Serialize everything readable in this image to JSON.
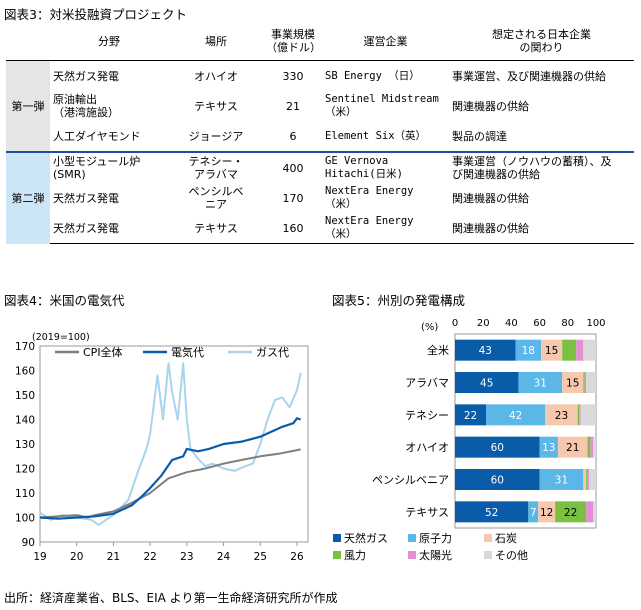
{
  "table": {
    "title": "図表3：対米投融資プロジェクト",
    "headers": [
      "",
      "分野",
      "場所",
      "事業規模\n（億ドル）",
      "運営企業",
      "想定される日本企業\nの関わり"
    ],
    "groups": [
      {
        "label": "第一弾",
        "rows": [
          {
            "field": "天然ガス発電",
            "place": "オハイオ",
            "size": "330",
            "company": "SB Energy （日）",
            "role": "事業運営、及び関連機器の供給"
          },
          {
            "field": "原油輸出\n（港湾施設）",
            "place": "テキサス",
            "size": "21",
            "company": "Sentinel Midstream\n（米）",
            "role": "関連機器の供給"
          },
          {
            "field": "人工ダイヤモンド",
            "place": "ジョージア",
            "size": "6",
            "company": "Element Six（英）",
            "role": "製品の調達"
          }
        ]
      },
      {
        "label": "第二弾",
        "rows": [
          {
            "field": "小型モジュール炉\n(SMR)",
            "place": "テネシー・\nアラバマ",
            "size": "400",
            "company": "GE Vernova\nHitachi(日米)",
            "role": "事業運営（ノウハウの蓄積）、及\nび関連機器の供給"
          },
          {
            "field": "天然ガス発電",
            "place": "ペンシルベ\nニア",
            "size": "170",
            "company": "NextEra Energy\n（米）",
            "role": "関連機器の供給"
          },
          {
            "field": "天然ガス発電",
            "place": "テキサス",
            "size": "160",
            "company": "NextEra Energy\n（米）",
            "role": "関連機器の供給"
          }
        ]
      }
    ]
  },
  "footer": "出所：経済産業省、BLS、EIA より第一生命経済研究所が作成",
  "chart_data": [
    {
      "type": "line",
      "title": "図表4：米国の電気代",
      "unit_label": "(2019=100)",
      "ylim": [
        90,
        170
      ],
      "yticks": [
        90,
        100,
        110,
        120,
        130,
        140,
        150,
        160,
        170
      ],
      "xlim": [
        2019,
        2026.3
      ],
      "xticks": [
        2019,
        2020,
        2021,
        2022,
        2023,
        2024,
        2025,
        2026
      ],
      "xtick_labels": [
        "19",
        "20",
        "21",
        "22",
        "23",
        "24",
        "25",
        "26"
      ],
      "series": [
        {
          "name": "CPI全体",
          "color": "#7f7f7f",
          "x": [
            2019,
            2019.5,
            2020,
            2020.3,
            2020.5,
            2021,
            2021.5,
            2022,
            2022.5,
            2023,
            2023.5,
            2024,
            2024.5,
            2025,
            2025.5,
            2026,
            2026.1
          ],
          "y": [
            100,
            100.5,
            101,
            100,
            101,
            102.5,
            106,
            110,
            116,
            118.5,
            120,
            122,
            123.5,
            125,
            126,
            127.5,
            127.8
          ]
        },
        {
          "name": "電気代",
          "color": "#0a5ca8",
          "x": [
            2019,
            2019.5,
            2020,
            2020.5,
            2021,
            2021.5,
            2021.8,
            2022,
            2022.3,
            2022.6,
            2022.9,
            2023,
            2023.3,
            2023.6,
            2024,
            2024.5,
            2025,
            2025.3,
            2025.6,
            2025.9,
            2026,
            2026.1
          ],
          "y": [
            100,
            99.5,
            100,
            100.5,
            101.5,
            105,
            109,
            112,
            117,
            123.5,
            125,
            128,
            127,
            128,
            130,
            131,
            133,
            135,
            137,
            138.5,
            140.5,
            140
          ]
        },
        {
          "name": "ガス代",
          "color": "#a9d4ec",
          "x": [
            2019,
            2019.3,
            2019.6,
            2020,
            2020.4,
            2020.6,
            2021,
            2021.4,
            2021.7,
            2021.9,
            2022,
            2022.2,
            2022.35,
            2022.5,
            2022.6,
            2022.75,
            2022.9,
            2023,
            2023.1,
            2023.3,
            2023.5,
            2023.7,
            2024,
            2024.3,
            2024.6,
            2024.8,
            2025,
            2025.2,
            2025.4,
            2025.6,
            2025.8,
            2026,
            2026.1
          ],
          "y": [
            102,
            99,
            101,
            100,
            99,
            97,
            101,
            107,
            120,
            128,
            134,
            158,
            140,
            163,
            151,
            140,
            163,
            140,
            128,
            124,
            121,
            122,
            120,
            119,
            121,
            122,
            130,
            140,
            148,
            149,
            145,
            152,
            159
          ]
        }
      ]
    },
    {
      "type": "bar",
      "stacked": true,
      "orientation": "horizontal",
      "title": "図表5：州別の発電構成",
      "unit_label": "(%)",
      "xlim": [
        0,
        100
      ],
      "xticks": [
        0,
        20,
        40,
        60,
        80,
        100
      ],
      "categories": [
        "全米",
        "アラバマ",
        "テネシー",
        "オハイオ",
        "ペンシルベニア",
        "テキサス"
      ],
      "series": [
        {
          "name": "天然ガス",
          "color": "#0a5ca8",
          "label_color": "#ffffff",
          "values": [
            43,
            45,
            22,
            60,
            60,
            52
          ]
        },
        {
          "name": "原子力",
          "color": "#5ab7e8",
          "label_color": "#ffffff",
          "values": [
            18,
            31,
            42,
            13,
            31,
            7
          ]
        },
        {
          "name": "石炭",
          "color": "#f7c8ad",
          "label_color": "#000000",
          "values": [
            15,
            15,
            23,
            21,
            2,
            12
          ]
        },
        {
          "name": "風力",
          "color": "#7ac143",
          "label_color": "#000000",
          "values": [
            10,
            1,
            1,
            2,
            1,
            22
          ]
        },
        {
          "name": "太陽光",
          "color": "#e58ed6",
          "label_color": "#000000",
          "values": [
            5,
            1,
            1,
            2,
            1,
            5
          ]
        },
        {
          "name": "その他",
          "color": "#d9d9d9",
          "label_color": "#000000",
          "values": [
            9,
            7,
            11,
            2,
            5,
            2
          ]
        }
      ],
      "labeled_values": [
        [
          "43",
          "18",
          "15",
          "",
          "",
          ""
        ],
        [
          "45",
          "31",
          "15",
          "",
          "",
          ""
        ],
        [
          "22",
          "42",
          "23",
          "",
          "",
          ""
        ],
        [
          "60",
          "13",
          "21",
          "",
          "",
          ""
        ],
        [
          "60",
          "31",
          "",
          "",
          "",
          ""
        ],
        [
          "52",
          "7",
          "12",
          "22",
          "",
          ""
        ]
      ]
    }
  ]
}
